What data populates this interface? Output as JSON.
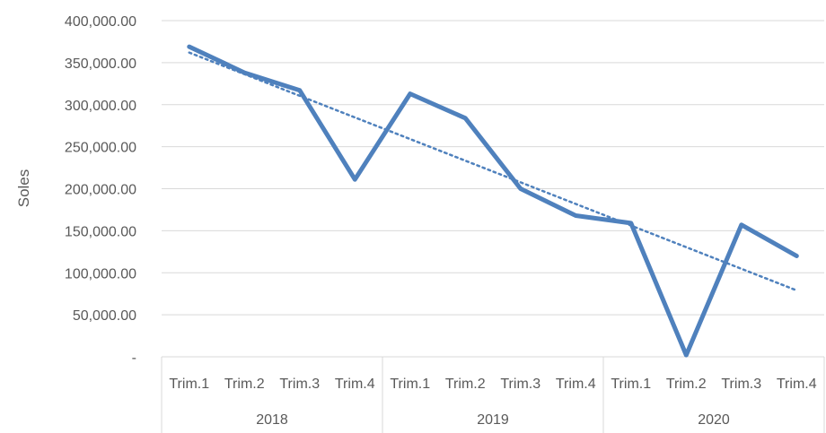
{
  "chart_data": {
    "type": "line",
    "title": "",
    "ylabel": "Soles",
    "xlabel": "",
    "ylim": [
      0,
      400000
    ],
    "y_ticks": [
      0,
      50000,
      100000,
      150000,
      200000,
      250000,
      300000,
      350000,
      400000
    ],
    "y_tick_labels": [
      "-",
      "50,000.00",
      "100,000.00",
      "150,000.00",
      "200,000.00",
      "250,000.00",
      "300,000.00",
      "350,000.00",
      "400,000.00"
    ],
    "categories": [
      "Trim.1",
      "Trim.2",
      "Trim.3",
      "Trim.4",
      "Trim.1",
      "Trim.2",
      "Trim.3",
      "Trim.4",
      "Trim.1",
      "Trim.2",
      "Trim.3",
      "Trim.4"
    ],
    "groups": [
      {
        "label": "2018",
        "count": 4
      },
      {
        "label": "2019",
        "count": 4
      },
      {
        "label": "2020",
        "count": 4
      }
    ],
    "series": [
      {
        "values": [
          369000,
          338000,
          317000,
          211000,
          313000,
          284000,
          200000,
          168000,
          159000,
          2000,
          157000,
          120000
        ],
        "color": "#4f81bd"
      }
    ],
    "trendline": {
      "type": "linear",
      "start": 362000,
      "end": 79000,
      "color": "#4f81bd",
      "style": "dotted"
    },
    "grid": true,
    "legend": "none"
  }
}
